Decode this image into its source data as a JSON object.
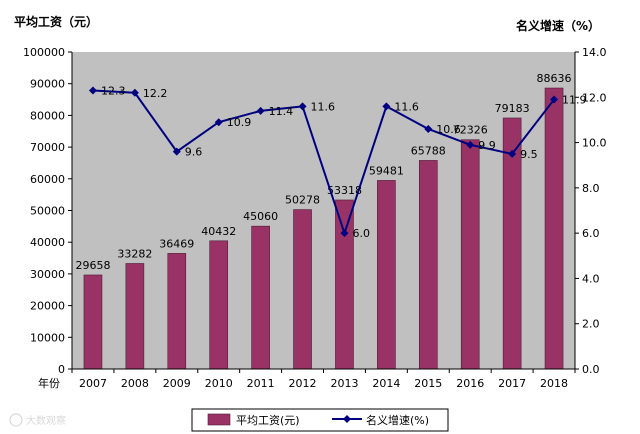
{
  "chart_data": {
    "type": "bar",
    "categories": [
      "2007",
      "2008",
      "2009",
      "2010",
      "2011",
      "2012",
      "2013",
      "2014",
      "2015",
      "2016",
      "2017",
      "2018"
    ],
    "series": [
      {
        "name": "平均工资(元)",
        "type": "bar",
        "axis": "left",
        "color": "#993366",
        "values": [
          29658,
          33282,
          36469,
          40432,
          45060,
          50278,
          53318,
          59481,
          65788,
          72326,
          79183,
          88636
        ]
      },
      {
        "name": "名义增速(%)",
        "type": "line",
        "axis": "right",
        "color": "#000080",
        "values": [
          12.3,
          12.2,
          9.6,
          10.9,
          11.4,
          11.6,
          6.0,
          11.6,
          10.6,
          9.9,
          9.5,
          11.9
        ],
        "labels": [
          "12.3",
          "12.2",
          "9.6",
          "10.9",
          "11.4",
          "11.6",
          "6.0",
          "11.6",
          "10.6",
          "9.9",
          "9.5",
          "11.9"
        ]
      }
    ],
    "left_axis": {
      "title": "平均工资（元）",
      "ylim": [
        0,
        100000
      ],
      "ticks": [
        0,
        10000,
        20000,
        30000,
        40000,
        50000,
        60000,
        70000,
        80000,
        90000,
        100000
      ]
    },
    "right_axis": {
      "title": "名义增速（%）",
      "ylim": [
        0,
        14
      ],
      "ticks": [
        "0.0",
        "2.0",
        "4.0",
        "6.0",
        "8.0",
        "10.0",
        "12.0",
        "14.0"
      ]
    },
    "xlabel": "年份",
    "plot_background": "#c0c0c0",
    "grid": false,
    "legend": {
      "placement": "bottom",
      "entries": [
        "平均工资(元)",
        "名义增速(%)"
      ]
    }
  },
  "watermark": "大数观察"
}
